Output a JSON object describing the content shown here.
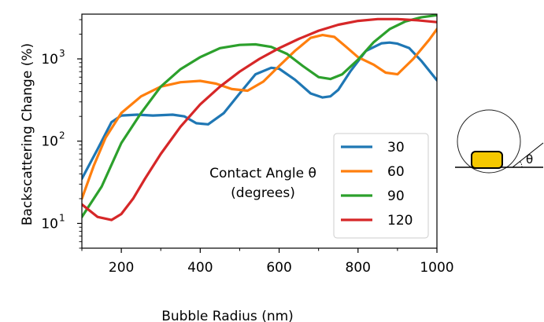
{
  "chart_data": {
    "type": "line",
    "title": "",
    "xlabel": "Bubble Radius (nm)",
    "ylabel": "Backscattering Change (%)",
    "xlim": [
      100,
      1000
    ],
    "ylim": [
      5,
      3500
    ],
    "yscale": "log",
    "grid": false,
    "x_ticks": [
      "200",
      "400",
      "600",
      "800",
      "1000"
    ],
    "y_ticks": [
      {
        "base": "10",
        "exp": "1"
      },
      {
        "base": "10",
        "exp": "2"
      },
      {
        "base": "10",
        "exp": "3"
      }
    ],
    "annotation": {
      "line1": "Contact Angle θ",
      "line2": "(degrees)"
    },
    "legend": {
      "placement": "lower-right",
      "title": ""
    },
    "series": [
      {
        "name": "30",
        "color": "#1f77b4",
        "x": [
          100,
          140,
          175,
          200,
          240,
          280,
          330,
          360,
          390,
          420,
          460,
          500,
          540,
          580,
          600,
          640,
          680,
          710,
          730,
          750,
          780,
          820,
          860,
          880,
          900,
          930,
          960,
          1000
        ],
        "y": [
          35,
          80,
          170,
          205,
          210,
          205,
          210,
          200,
          165,
          160,
          220,
          380,
          650,
          780,
          760,
          560,
          380,
          340,
          350,
          420,
          700,
          1250,
          1550,
          1580,
          1530,
          1350,
          950,
          550
        ]
      },
      {
        "name": "60",
        "color": "#ff7f0e",
        "x": [
          100,
          130,
          160,
          200,
          250,
          300,
          350,
          400,
          440,
          480,
          520,
          560,
          600,
          640,
          680,
          710,
          740,
          770,
          800,
          840,
          870,
          900,
          940,
          980,
          1000
        ],
        "y": [
          20,
          50,
          110,
          220,
          350,
          460,
          520,
          540,
          500,
          430,
          410,
          530,
          820,
          1250,
          1800,
          1950,
          1850,
          1400,
          1050,
          850,
          680,
          650,
          1000,
          1700,
          2300
        ]
      },
      {
        "name": "90",
        "color": "#2ca02c",
        "x": [
          100,
          150,
          200,
          250,
          300,
          350,
          400,
          450,
          500,
          540,
          580,
          620,
          660,
          700,
          730,
          760,
          800,
          840,
          880,
          920,
          960,
          1000
        ],
        "y": [
          12,
          28,
          95,
          220,
          460,
          750,
          1050,
          1350,
          1480,
          1500,
          1400,
          1150,
          820,
          600,
          570,
          650,
          980,
          1600,
          2300,
          2850,
          3200,
          3400
        ]
      },
      {
        "name": "120",
        "color": "#d62728",
        "x": [
          100,
          140,
          175,
          200,
          230,
          260,
          300,
          350,
          400,
          450,
          500,
          550,
          600,
          650,
          700,
          750,
          800,
          850,
          900,
          950,
          1000
        ],
        "y": [
          17,
          12,
          11,
          13,
          20,
          35,
          70,
          150,
          280,
          460,
          700,
          1000,
          1350,
          1750,
          2200,
          2600,
          2900,
          3050,
          3050,
          2950,
          2800
        ]
      }
    ]
  }
}
